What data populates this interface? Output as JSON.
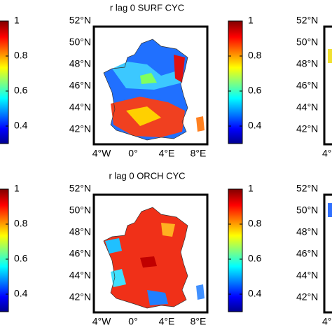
{
  "colorbar": {
    "lim": [
      0.3,
      1
    ],
    "ticks": [
      0.4,
      0.6,
      0.8,
      1
    ]
  },
  "panels": [
    {
      "title": "r lag 0 SURF CYC",
      "lat_labels": [
        "52°N",
        "50°N",
        "48°N",
        "46°N",
        "44°N",
        "42°N"
      ],
      "lon_labels": [
        "4°W",
        "0°",
        "4°E",
        "8°E"
      ]
    },
    {
      "title": "r lag 0 ORCH CYC",
      "lat_labels": [
        "52°N",
        "50°N",
        "48°N",
        "46°N",
        "44°N",
        "42°N"
      ],
      "lon_labels": [
        "4°W",
        "0°",
        "4°E",
        "8°E"
      ]
    }
  ],
  "right_panels": [
    {
      "lat_labels": [
        "52°N",
        "50°N",
        "48°N",
        "46°N",
        "44°N",
        "42°N"
      ],
      "lon_labels": [
        "4°"
      ]
    },
    {
      "lat_labels": [
        "52°N",
        "50°N",
        "48°N",
        "46°N",
        "44°N",
        "42°N"
      ],
      "lon_labels": [
        "4°"
      ]
    }
  ]
}
